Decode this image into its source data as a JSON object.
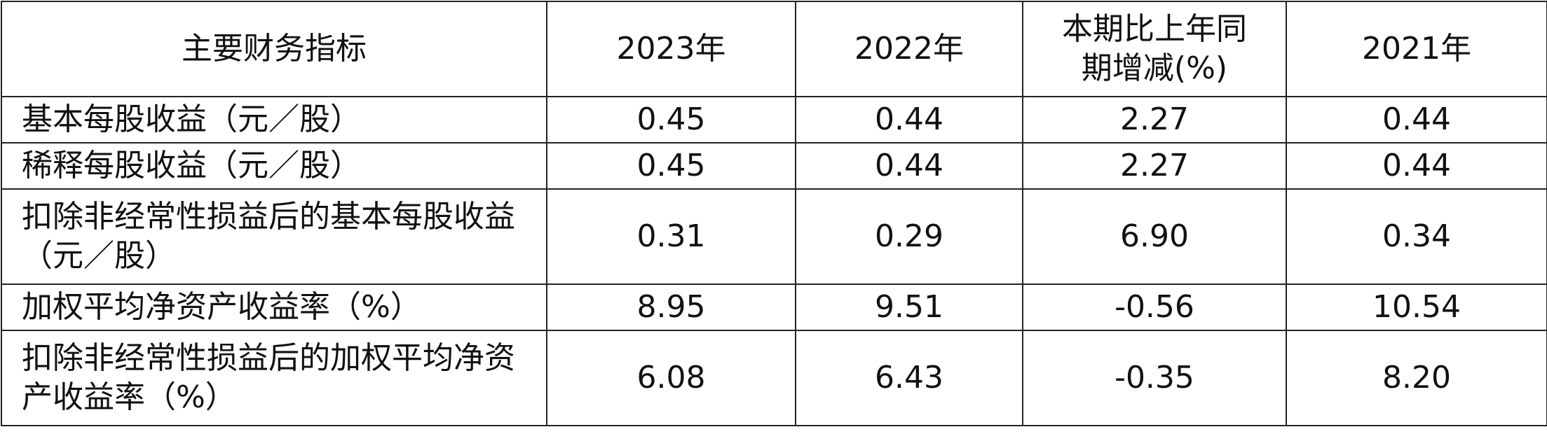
{
  "table": {
    "header": [
      "主要财务指标",
      "2023年",
      "2022年",
      "本期比上年同期增减(%)",
      "2021年"
    ],
    "rows": [
      [
        "基本每股收益（元／股）",
        "0.45",
        "0.44",
        "2.27",
        "0.44"
      ],
      [
        "稀释每股收益（元／股）",
        "0.45",
        "0.44",
        "2.27",
        "0.44"
      ],
      [
        "扣除非经常性损益后的基本每股收益（元／股）",
        "0.31",
        "0.29",
        "6.90",
        "0.34"
      ],
      [
        "加权平均净资产收益率（%）",
        "8.95",
        "9.51",
        "-0.56",
        "10.54"
      ],
      [
        "扣除非经常性损益后的加权平均净资产收益率（%）",
        "6.08",
        "6.43",
        "-0.35",
        "8.20"
      ]
    ]
  }
}
